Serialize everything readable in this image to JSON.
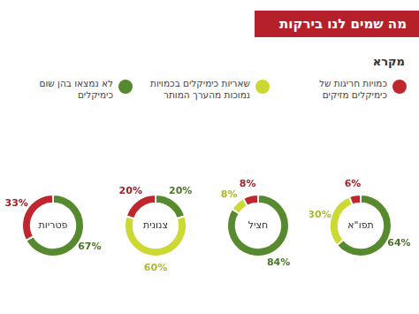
{
  "title": "מה שמים לנו בירקות",
  "key": {
    "title": "מקרא",
    "items": [
      {
        "label": "כמויות חריגות של כימיקלים מזיקים",
        "color": "#c0262d"
      },
      {
        "label": "שאריות כימיקלים בכמויות נמוכות מהערך המותר",
        "color": "#cbd932"
      },
      {
        "label": "לא נמצאו בהן שום כימיקלים",
        "color": "#578a2e"
      }
    ]
  },
  "chart_data": [
    {
      "type": "doughnut",
      "title": "תפו\"א",
      "categories": [
        "לא נמצאו בהן שום כימיקלים",
        "שאריות כימיקלים בכמויות נמוכות מהערך המותר",
        "כמויות חריגות של כימיקלים מזיקים"
      ],
      "values": [
        64,
        30,
        6
      ],
      "value_labels": [
        "64%",
        "30%",
        "6%"
      ],
      "colors": [
        "#578a2e",
        "#cbd932",
        "#c0262d"
      ],
      "data_labels": true
    },
    {
      "type": "doughnut",
      "title": "חציל",
      "categories": [
        "לא נמצאו בהן שום כימיקלים",
        "שאריות כימיקלים בכמויות נמוכות מהערך המותר",
        "כמויות חריגות של כימיקלים מזיקים"
      ],
      "values": [
        84,
        8,
        8
      ],
      "value_labels": [
        "84%",
        "8%",
        "8%"
      ],
      "colors": [
        "#578a2e",
        "#cbd932",
        "#c0262d"
      ],
      "data_labels": true
    },
    {
      "type": "doughnut",
      "title": "צנונית",
      "categories": [
        "לא נמצאו בהן שום כימיקלים",
        "שאריות כימיקלים בכמויות נמוכות מהערך המותר",
        "כמויות חריגות של כימיקלים מזיקים"
      ],
      "values": [
        20,
        60,
        20
      ],
      "value_labels": [
        "20%",
        "60%",
        "20%"
      ],
      "colors": [
        "#578a2e",
        "#cbd932",
        "#c0262d"
      ],
      "data_labels": true
    },
    {
      "type": "doughnut",
      "title": "פטריות",
      "categories": [
        "לא נמצאו בהן שום כימיקלים",
        "כמויות חריגות של כימיקלים מזיקים"
      ],
      "values": [
        67,
        33
      ],
      "value_labels": [
        "67%",
        "33%"
      ],
      "colors": [
        "#578a2e",
        "#c0262d"
      ],
      "data_labels": true
    }
  ]
}
